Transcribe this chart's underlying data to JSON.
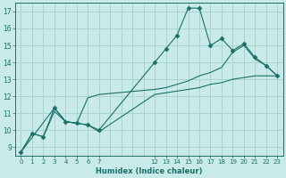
{
  "xlabel": "Humidex (Indice chaleur)",
  "bg_color": "#c8eae8",
  "grid_color": "#aad4d0",
  "line_color": "#1a7068",
  "xlim": [
    -0.5,
    23.5
  ],
  "ylim": [
    8.5,
    17.5
  ],
  "yticks": [
    9,
    10,
    11,
    12,
    13,
    14,
    15,
    16,
    17
  ],
  "xticks_pos": [
    0,
    1,
    2,
    3,
    4,
    5,
    6,
    7,
    12,
    13,
    14,
    15,
    16,
    17,
    18,
    19,
    20,
    21,
    22,
    23
  ],
  "xticks_labels": [
    "0",
    "1",
    "2",
    "3",
    "4",
    "5",
    "6",
    "7",
    "12",
    "13",
    "14",
    "15",
    "16",
    "17",
    "18",
    "19",
    "20",
    "21",
    "22",
    "23"
  ],
  "grid_x": [
    0,
    1,
    2,
    3,
    4,
    5,
    6,
    7,
    8,
    9,
    10,
    11,
    12,
    13,
    14,
    15,
    16,
    17,
    18,
    19,
    20,
    21,
    22,
    23
  ],
  "line1_x": [
    0,
    1,
    2,
    3,
    4,
    5,
    6,
    7,
    12,
    13,
    14,
    15,
    16,
    17,
    18,
    19,
    20,
    21,
    22,
    23
  ],
  "line1_y": [
    8.7,
    9.8,
    9.6,
    11.3,
    10.5,
    10.4,
    10.3,
    10.0,
    14.0,
    14.8,
    15.6,
    17.2,
    17.2,
    15.0,
    15.4,
    14.7,
    15.1,
    14.3,
    13.8,
    13.2
  ],
  "line2_x": [
    0,
    1,
    2,
    3,
    4,
    5,
    6,
    7,
    12,
    13,
    14,
    15,
    16,
    17,
    18,
    19,
    20,
    21,
    22,
    23
  ],
  "line2_y": [
    8.7,
    9.8,
    9.6,
    11.1,
    10.5,
    10.4,
    10.3,
    9.9,
    12.1,
    12.2,
    12.3,
    12.4,
    12.5,
    12.7,
    12.8,
    13.0,
    13.1,
    13.2,
    13.2,
    13.2
  ],
  "line3_x": [
    0,
    3,
    4,
    5,
    6,
    7,
    12,
    13,
    14,
    15,
    16,
    17,
    18,
    19,
    20,
    21,
    22,
    23
  ],
  "line3_y": [
    8.7,
    11.3,
    10.5,
    10.4,
    11.9,
    12.1,
    12.4,
    12.5,
    12.7,
    12.9,
    13.2,
    13.4,
    13.7,
    14.6,
    15.0,
    14.2,
    13.8,
    13.2
  ],
  "marker_x": [
    0,
    1,
    2,
    3,
    4,
    5,
    6,
    7,
    12,
    13,
    14,
    15,
    16,
    17,
    18,
    19,
    20,
    21,
    22,
    23
  ],
  "marker_y": [
    8.7,
    9.8,
    9.6,
    11.3,
    10.5,
    10.4,
    10.3,
    10.0,
    14.0,
    14.8,
    15.6,
    17.2,
    17.2,
    15.0,
    15.4,
    14.7,
    15.1,
    14.3,
    13.8,
    13.2
  ]
}
